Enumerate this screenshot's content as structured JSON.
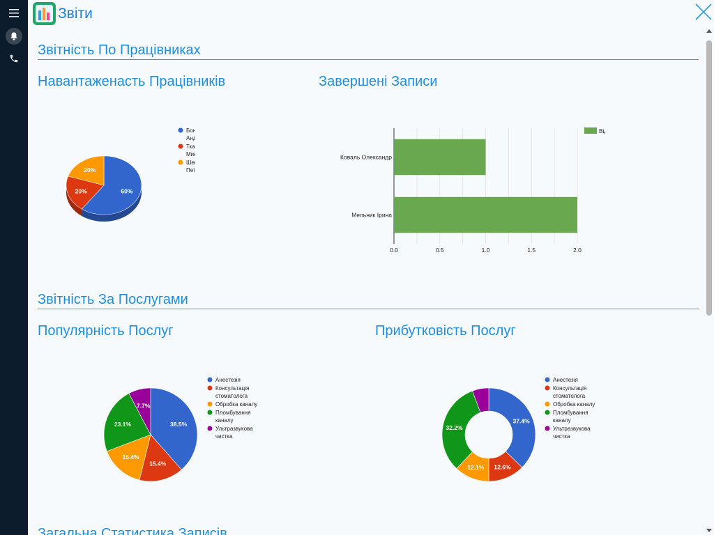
{
  "app": {
    "title": "Звіти"
  },
  "sections": {
    "employees": "Звітність По Працівниках",
    "services": "Звітність За Послугами",
    "general": "Загальна Статистика Записів"
  },
  "colors": {
    "blue": "#3366cc",
    "red": "#dc3912",
    "orange": "#ff9900",
    "green": "#109618",
    "purple": "#990099",
    "bar": "#6aa84f",
    "accent": "#1f8ee0"
  },
  "icons": {
    "menu": "hamburger-icon",
    "notifications": "bell-icon",
    "calls": "phone-icon",
    "close": "close-icon"
  },
  "chart_data": [
    {
      "type": "pie",
      "title": "Навантаженасть Працівників",
      "categories": [
        "Бондар Андрій",
        "Ткаченко Микола",
        "Шевченко Петро"
      ],
      "values": [
        60,
        20,
        20
      ],
      "labels": [
        "60%",
        "20%",
        "20%"
      ],
      "legend": "right"
    },
    {
      "type": "bar",
      "orientation": "horizontal",
      "title": "Завершені Записи",
      "categories": [
        "Коваль Олександр",
        "Мельник Ірина"
      ],
      "series": [
        {
          "name": "Відбувся",
          "values": [
            1,
            2
          ]
        }
      ],
      "xlim": [
        0,
        2
      ],
      "xticks": [
        "0.0",
        "0.5",
        "1.0",
        "1.5",
        "2.0"
      ],
      "grid": true,
      "legend": "top-right"
    },
    {
      "type": "pie",
      "title": "Популярність Послуг",
      "categories": [
        "Анестезія",
        "Консультація стоматолога",
        "Обробка каналу",
        "Пломбування каналу",
        "Ультразвукова чистка"
      ],
      "values": [
        38.5,
        15.4,
        15.4,
        23.1,
        7.7
      ],
      "labels": [
        "38.5%",
        "15.4%",
        "15.4%",
        "23.1%",
        "7.7%"
      ],
      "legend": "right"
    },
    {
      "type": "pie",
      "donut": true,
      "title": "Прибутковість Послуг",
      "categories": [
        "Анестезія",
        "Консультація стоматолога",
        "Обробка каналу",
        "Пломбування каналу",
        "Ультразвукова чистка"
      ],
      "values": [
        37.4,
        12.6,
        12.1,
        32.2,
        5.7
      ],
      "labels": [
        "37.4%",
        "12.6%",
        "12.1%",
        "32.2%",
        ""
      ],
      "legend": "right"
    }
  ]
}
